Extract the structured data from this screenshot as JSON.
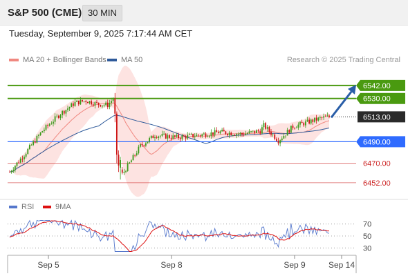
{
  "header": {
    "title": "S&P 500 (CME)",
    "interval": "30 MIN"
  },
  "datetime": "Tuesday, September 9, 2025 7:17:44 AM CET",
  "legend": {
    "ma20_bb": "MA 20 + Bollinger Bands",
    "ma50": "MA 50",
    "credit": "Research © 2025 Trading Central",
    "ma20_color": "#f08880",
    "ma50_color": "#2e5a9a"
  },
  "rsi_legend": {
    "rsi": "RSI",
    "ma9": "9MA",
    "rsi_color": "#5577cc",
    "ma9_color": "#dd1111"
  },
  "chart_data": [
    {
      "type": "candlestick",
      "title": "S&P 500 (CME)",
      "interval": "30 MIN",
      "ylim": [
        6443,
        6556
      ],
      "x_ticks": [
        "Sep 5",
        "Sep 8",
        "Sep 9",
        "Sep 14"
      ],
      "price_levels": [
        {
          "label": "6542.00",
          "value": 6542,
          "kind": "target",
          "color": "#4a9a10"
        },
        {
          "label": "6530.00",
          "value": 6530,
          "kind": "resistance",
          "color": "#4a9a10"
        },
        {
          "label": "6513.00",
          "value": 6513,
          "kind": "last",
          "color": "#222222"
        },
        {
          "label": "6490.00",
          "value": 6490,
          "kind": "pivot",
          "color": "#2f6bff"
        },
        {
          "label": "6470.00",
          "value": 6470,
          "kind": "support",
          "color": "#cc2222"
        },
        {
          "label": "6452.00",
          "value": 6452,
          "kind": "support",
          "color": "#cc2222"
        }
      ],
      "forecast_arrow": {
        "from": 6513,
        "to": 6542,
        "color": "#2a5ea8"
      },
      "up_color": "#3a9a1a",
      "down_color": "#cc1111",
      "ma_colors": {
        "ma20": "#f08880",
        "ma50": "#2e5a9a",
        "band_fill": "#fde0de"
      }
    },
    {
      "type": "line",
      "title": "RSI",
      "series": [
        {
          "name": "RSI"
        },
        {
          "name": "9MA"
        }
      ],
      "ylim": [
        20,
        80
      ],
      "y_ticks": [
        70,
        50,
        30
      ]
    }
  ]
}
